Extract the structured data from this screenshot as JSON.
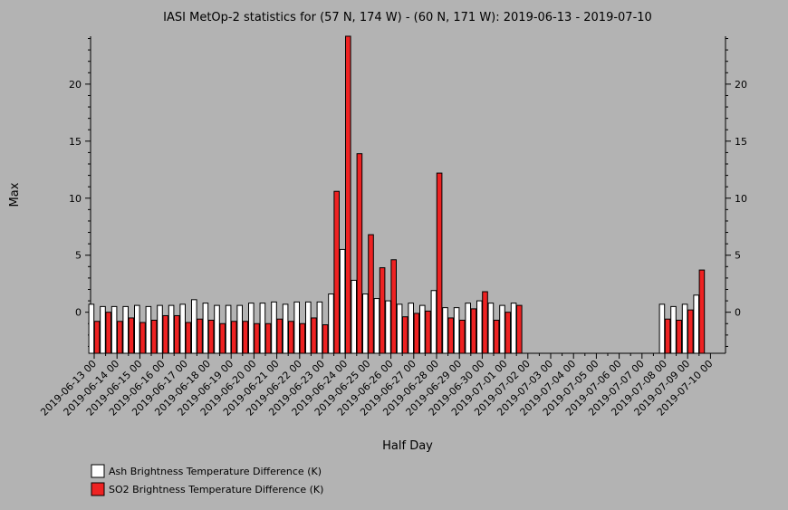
{
  "chart_data": {
    "type": "bar",
    "title": "IASI MetOp-2 statistics for (57 N, 174 W) - (60 N, 171 W): 2019-06-13 - 2019-07-10",
    "xlabel": "Half Day",
    "ylabel": "Max",
    "ylim": [
      -3.6,
      24.2
    ],
    "yticks": [
      0,
      5,
      10,
      15,
      20
    ],
    "grid": false,
    "legend_position": "bottom-left",
    "categories": [
      "2019-06-13 00",
      "2019-06-13 12",
      "2019-06-14 00",
      "2019-06-14 12",
      "2019-06-15 00",
      "2019-06-15 12",
      "2019-06-16 00",
      "2019-06-16 12",
      "2019-06-17 00",
      "2019-06-17 12",
      "2019-06-18 00",
      "2019-06-18 12",
      "2019-06-19 00",
      "2019-06-19 12",
      "2019-06-20 00",
      "2019-06-20 12",
      "2019-06-21 00",
      "2019-06-21 12",
      "2019-06-22 00",
      "2019-06-22 12",
      "2019-06-23 00",
      "2019-06-23 12",
      "2019-06-24 00",
      "2019-06-24 12",
      "2019-06-25 00",
      "2019-06-25 12",
      "2019-06-26 00",
      "2019-06-26 12",
      "2019-06-27 00",
      "2019-06-27 12",
      "2019-06-28 00",
      "2019-06-28 12",
      "2019-06-29 00",
      "2019-06-29 12",
      "2019-06-30 00",
      "2019-06-30 12",
      "2019-07-01 00",
      "2019-07-01 12",
      "2019-07-02 00",
      "2019-07-02 12",
      "2019-07-03 00",
      "2019-07-03 12",
      "2019-07-04 00",
      "2019-07-04 12",
      "2019-07-05 00",
      "2019-07-05 12",
      "2019-07-06 00",
      "2019-07-06 12",
      "2019-07-07 00",
      "2019-07-07 12",
      "2019-07-08 00",
      "2019-07-08 12",
      "2019-07-09 00",
      "2019-07-09 12",
      "2019-07-10 00"
    ],
    "xtick_labels": [
      "2019-06-13 00",
      "2019-06-14 00",
      "2019-06-15 00",
      "2019-06-16 00",
      "2019-06-17 00",
      "2019-06-18 00",
      "2019-06-19 00",
      "2019-06-20 00",
      "2019-06-21 00",
      "2019-06-22 00",
      "2019-06-23 00",
      "2019-06-24 00",
      "2019-06-25 00",
      "2019-06-26 00",
      "2019-06-27 00",
      "2019-06-28 00",
      "2019-06-29 00",
      "2019-06-30 00",
      "2019-07-01 00",
      "2019-07-02 00",
      "2019-07-03 00",
      "2019-07-04 00",
      "2019-07-05 00",
      "2019-07-06 00",
      "2019-07-07 00",
      "2019-07-08 00",
      "2019-07-09 00",
      "2019-07-10 00"
    ],
    "series": [
      {
        "name": "Ash Brightness Temperature Difference (K)",
        "color": "#ffffff",
        "values": [
          0.7,
          0.5,
          0.5,
          0.5,
          0.6,
          0.5,
          0.6,
          0.6,
          0.7,
          1.1,
          0.8,
          0.6,
          0.6,
          0.6,
          0.8,
          0.8,
          0.9,
          0.7,
          0.9,
          0.9,
          0.9,
          1.6,
          5.5,
          2.8,
          1.6,
          1.2,
          1.0,
          0.7,
          0.8,
          0.6,
          1.9,
          0.4,
          0.4,
          0.8,
          1.0,
          0.8,
          0.6,
          0.8,
          null,
          null,
          null,
          null,
          null,
          null,
          null,
          null,
          null,
          null,
          null,
          null,
          0.7,
          0.5,
          0.7,
          1.5,
          null
        ]
      },
      {
        "name": "SO2 Brightness Temperature Difference (K)",
        "color": "#ee2222",
        "values": [
          -0.8,
          0.0,
          -0.8,
          -0.5,
          -0.9,
          -0.7,
          -0.3,
          -0.3,
          -0.9,
          -0.6,
          -0.7,
          -1.0,
          -0.8,
          -0.8,
          -1.0,
          -1.0,
          -0.6,
          -0.8,
          -1.0,
          -0.5,
          -1.1,
          10.6,
          24.2,
          13.9,
          6.8,
          3.9,
          4.6,
          -0.4,
          -0.1,
          0.1,
          12.2,
          -0.5,
          -0.7,
          0.3,
          1.8,
          -0.7,
          0.0,
          0.6,
          null,
          null,
          null,
          null,
          null,
          null,
          null,
          null,
          null,
          null,
          null,
          null,
          -0.6,
          -0.7,
          0.2,
          3.7,
          null
        ]
      }
    ]
  }
}
